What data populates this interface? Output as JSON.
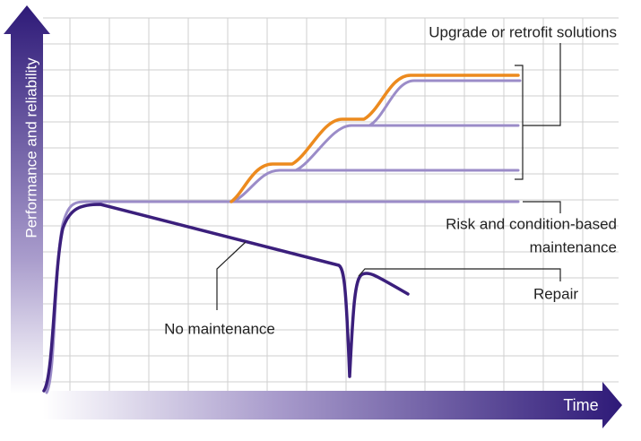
{
  "axes": {
    "y_label": "Performance and reliability",
    "x_label": "Time"
  },
  "labels": {
    "upgrade": "Upgrade or retrofit solutions",
    "risk_line1": "Risk and condition-based",
    "risk_line2": "maintenance",
    "repair": "Repair",
    "no_maintenance": "No maintenance"
  }
}
